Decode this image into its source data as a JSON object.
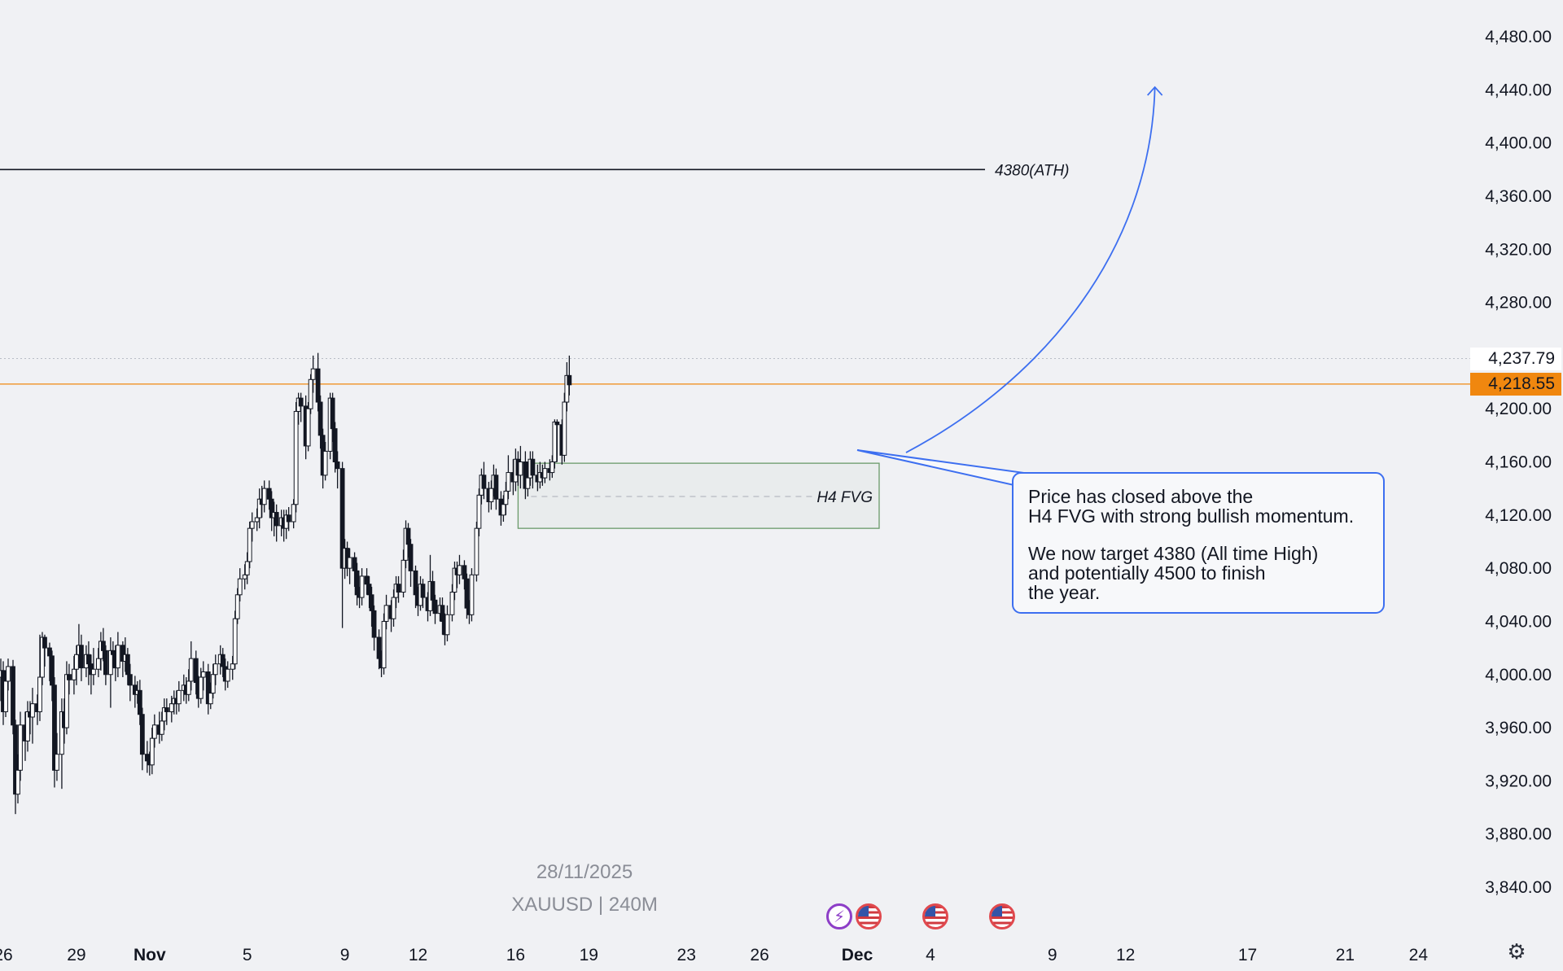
{
  "chart_data": {
    "type": "candlestick",
    "symbol_label": "XAUUSD | 240M",
    "date_label": "28/11/2025",
    "y_axis": {
      "range": [
        3820,
        4500
      ],
      "ticks": [
        "4,480.00",
        "4,440.00",
        "4,400.00",
        "4,360.00",
        "4,320.00",
        "4,280.00",
        "4,200.00",
        "4,160.00",
        "4,120.00",
        "4,080.00",
        "4,040.00",
        "4,000.00",
        "3,960.00",
        "3,920.00",
        "3,880.00",
        "3,840.00"
      ]
    },
    "x_axis": {
      "ticks": [
        {
          "label": "26",
          "day": 26
        },
        {
          "label": "29",
          "day": 29
        },
        {
          "label": "Nov",
          "day": 32,
          "bold": true
        },
        {
          "label": "5",
          "day": 36
        },
        {
          "label": "9",
          "day": 40
        },
        {
          "label": "12",
          "day": 43
        },
        {
          "label": "16",
          "day": 47
        },
        {
          "label": "19",
          "day": 50
        },
        {
          "label": "23",
          "day": 54
        },
        {
          "label": "26",
          "day": 57
        },
        {
          "label": "Dec",
          "day": 61,
          "bold": true
        },
        {
          "label": "4",
          "day": 64
        },
        {
          "label": "9",
          "day": 69
        },
        {
          "label": "12",
          "day": 72
        },
        {
          "label": "17",
          "day": 77
        },
        {
          "label": "21",
          "day": 81
        },
        {
          "label": "24",
          "day": 84
        }
      ]
    },
    "price_labels": {
      "high": {
        "value": 4237.79,
        "text": "4,237.79"
      },
      "last": {
        "value": 4218.55,
        "text": "4,218.55",
        "color": "#f0870f"
      }
    },
    "ath_line": {
      "value": 4380,
      "label": "4380(ATH)"
    },
    "fvg_zone": {
      "top": 4159,
      "bottom": 4110,
      "mid": 4134,
      "label": "H4 FVG",
      "day_start": 47.1,
      "day_end": 61.9
    },
    "projection_arrow": {
      "from": {
        "day": 63,
        "price": 4167
      },
      "to": {
        "day": 73.2,
        "price": 4442
      }
    },
    "candles": [
      [
        25.0,
        4118,
        4110,
        4075,
        4122
      ],
      [
        25.1,
        4075,
        4081,
        4060,
        4084
      ],
      [
        25.2,
        4081,
        4076,
        4052,
        4083
      ],
      [
        25.4,
        4076,
        4052,
        4040,
        4082
      ],
      [
        25.5,
        4052,
        4035,
        4026,
        4056
      ],
      [
        25.6,
        4035,
        4020,
        4010,
        4041
      ],
      [
        25.7,
        4020,
        3998,
        3990,
        4028
      ],
      [
        25.9,
        3998,
        4003,
        3980,
        4012
      ],
      [
        26.0,
        4003,
        3972,
        3962,
        4010
      ],
      [
        26.1,
        3972,
        3995,
        3968,
        4003
      ],
      [
        26.2,
        3995,
        4006,
        3988,
        4012
      ],
      [
        26.4,
        4006,
        3962,
        3955,
        4011
      ],
      [
        26.5,
        3962,
        3910,
        3895,
        3966
      ],
      [
        26.6,
        3910,
        3928,
        3903,
        3940
      ],
      [
        26.7,
        3928,
        3962,
        3920,
        3972
      ],
      [
        26.9,
        3962,
        3950,
        3935,
        3972
      ],
      [
        27.0,
        3950,
        3972,
        3942,
        3980
      ],
      [
        27.1,
        3972,
        3968,
        3955,
        3980
      ],
      [
        27.2,
        3968,
        3978,
        3948,
        3990
      ],
      [
        27.4,
        3978,
        3972,
        3962,
        3985
      ],
      [
        27.5,
        3972,
        3998,
        3965,
        4030
      ],
      [
        27.6,
        3998,
        4028,
        3992,
        4032
      ],
      [
        27.7,
        4028,
        4020,
        4006,
        4030
      ],
      [
        27.9,
        4020,
        4014,
        3995,
        4024
      ],
      [
        28.0,
        4014,
        3992,
        3980,
        4018
      ],
      [
        28.1,
        3992,
        3928,
        3915,
        3998
      ],
      [
        28.2,
        3928,
        3940,
        3920,
        3956
      ],
      [
        28.4,
        3940,
        3972,
        3914,
        3982
      ],
      [
        28.5,
        3972,
        3960,
        3948,
        3982
      ],
      [
        28.6,
        3960,
        4000,
        3955,
        4010
      ],
      [
        28.7,
        4000,
        3996,
        3985,
        4008
      ],
      [
        28.9,
        3996,
        4004,
        3985,
        4014
      ],
      [
        29.0,
        4004,
        4015,
        3992,
        4022
      ],
      [
        29.1,
        4015,
        4022,
        4005,
        4038
      ],
      [
        29.2,
        4022,
        4005,
        3995,
        4030
      ],
      [
        29.4,
        4005,
        4015,
        3998,
        4022
      ],
      [
        29.5,
        4015,
        4008,
        3992,
        4025
      ],
      [
        29.6,
        4008,
        4000,
        3985,
        4015
      ],
      [
        29.7,
        4000,
        4004,
        3992,
        4020
      ],
      [
        29.9,
        4004,
        4012,
        3998,
        4020
      ],
      [
        30.0,
        4012,
        4025,
        4003,
        4032
      ],
      [
        30.1,
        4025,
        4018,
        4010,
        4035
      ],
      [
        30.2,
        4018,
        4000,
        3992,
        4022
      ],
      [
        30.4,
        4000,
        4018,
        3975,
        4028
      ],
      [
        30.5,
        4018,
        4015,
        4005,
        4025
      ],
      [
        30.6,
        4015,
        4005,
        3995,
        4022
      ],
      [
        30.7,
        4005,
        4022,
        3998,
        4032
      ],
      [
        30.9,
        4022,
        4010,
        3998,
        4025
      ],
      [
        31.0,
        4010,
        4015,
        4002,
        4028
      ],
      [
        31.1,
        4015,
        4000,
        3992,
        4020
      ],
      [
        31.2,
        4000,
        3992,
        3980,
        4008
      ],
      [
        31.4,
        3992,
        3985,
        3975,
        3999
      ],
      [
        31.5,
        3985,
        3988,
        3978,
        3995
      ],
      [
        31.6,
        3988,
        3970,
        3962,
        3996
      ],
      [
        31.7,
        3970,
        3940,
        3928,
        3975
      ],
      [
        31.9,
        3940,
        3935,
        3926,
        3950
      ],
      [
        32.0,
        3935,
        3932,
        3924,
        3942
      ],
      [
        32.1,
        3932,
        3952,
        3925,
        3960
      ],
      [
        32.2,
        3952,
        3962,
        3945,
        3970
      ],
      [
        32.4,
        3962,
        3955,
        3948,
        3972
      ],
      [
        32.5,
        3955,
        3965,
        3950,
        3972
      ],
      [
        32.6,
        3965,
        3975,
        3958,
        3982
      ],
      [
        32.7,
        3975,
        3972,
        3962,
        3982
      ],
      [
        32.9,
        3972,
        3978,
        3964,
        3984
      ],
      [
        33.0,
        3978,
        3982,
        3970,
        3988
      ],
      [
        33.1,
        3982,
        3978,
        3970,
        3988
      ],
      [
        33.2,
        3978,
        3988,
        3972,
        3995
      ],
      [
        33.4,
        3988,
        3992,
        3980,
        4000
      ],
      [
        33.5,
        3992,
        3985,
        3978,
        3998
      ],
      [
        33.6,
        3985,
        3995,
        3980,
        4004
      ],
      [
        33.7,
        3995,
        4012,
        3988,
        4025
      ],
      [
        33.9,
        4012,
        3994,
        3985,
        4018
      ],
      [
        34.0,
        3994,
        3982,
        3975,
        3999
      ],
      [
        34.1,
        3982,
        3998,
        3978,
        4005
      ],
      [
        34.2,
        3998,
        4002,
        3988,
        4010
      ],
      [
        34.4,
        4002,
        3978,
        3970,
        4008
      ],
      [
        34.5,
        3978,
        3986,
        3974,
        3994
      ],
      [
        34.6,
        3986,
        4000,
        3982,
        4008
      ],
      [
        34.7,
        4000,
        4008,
        3992,
        4015
      ],
      [
        34.9,
        4008,
        4015,
        4000,
        4022
      ],
      [
        35.0,
        4015,
        4006,
        3998,
        4020
      ],
      [
        35.1,
        4006,
        3995,
        3988,
        4012
      ],
      [
        35.2,
        3995,
        4004,
        3990,
        4010
      ],
      [
        35.4,
        4004,
        4008,
        3996,
        4014
      ],
      [
        35.5,
        4008,
        4042,
        4004,
        4048
      ],
      [
        35.6,
        4042,
        4060,
        4038,
        4065
      ],
      [
        35.7,
        4060,
        4072,
        4055,
        4080
      ],
      [
        35.9,
        4072,
        4075,
        4064,
        4083
      ],
      [
        36.0,
        4075,
        4085,
        4068,
        4092
      ],
      [
        36.1,
        4085,
        4110,
        4080,
        4115
      ],
      [
        36.2,
        4110,
        4115,
        4100,
        4122
      ],
      [
        36.4,
        4115,
        4118,
        4108,
        4125
      ],
      [
        36.5,
        4118,
        4132,
        4110,
        4140
      ],
      [
        36.6,
        4132,
        4128,
        4118,
        4142
      ],
      [
        36.7,
        4128,
        4140,
        4122,
        4146
      ],
      [
        36.9,
        4140,
        4132,
        4124,
        4146
      ],
      [
        37.0,
        4132,
        4118,
        4108,
        4138
      ],
      [
        37.1,
        4118,
        4122,
        4104,
        4130
      ],
      [
        37.2,
        4122,
        4112,
        4100,
        4128
      ],
      [
        37.4,
        4112,
        4118,
        4104,
        4124
      ],
      [
        37.5,
        4118,
        4110,
        4100,
        4124
      ],
      [
        37.6,
        4110,
        4120,
        4102,
        4124
      ],
      [
        37.7,
        4120,
        4115,
        4108,
        4126
      ],
      [
        37.9,
        4115,
        4128,
        4110,
        4132
      ],
      [
        38.0,
        4128,
        4198,
        4122,
        4205
      ],
      [
        38.1,
        4198,
        4208,
        4188,
        4212
      ],
      [
        38.2,
        4208,
        4202,
        4190,
        4212
      ],
      [
        38.4,
        4202,
        4172,
        4162,
        4210
      ],
      [
        38.5,
        4172,
        4200,
        4168,
        4205
      ],
      [
        38.6,
        4200,
        4222,
        4196,
        4226
      ],
      [
        38.7,
        4222,
        4230,
        4212,
        4240
      ],
      [
        38.9,
        4230,
        4205,
        4198,
        4242
      ],
      [
        39.0,
        4205,
        4180,
        4170,
        4210
      ],
      [
        39.1,
        4180,
        4150,
        4140,
        4185
      ],
      [
        39.2,
        4150,
        4168,
        4146,
        4175
      ],
      [
        39.4,
        4168,
        4208,
        4162,
        4212
      ],
      [
        39.5,
        4208,
        4185,
        4175,
        4212
      ],
      [
        39.6,
        4185,
        4160,
        4152,
        4190
      ],
      [
        39.7,
        4160,
        4155,
        4140,
        4168
      ],
      [
        39.9,
        4155,
        4080,
        4035,
        4160
      ],
      [
        40.0,
        4080,
        4095,
        4072,
        4102
      ],
      [
        40.1,
        4095,
        4080,
        4074,
        4100
      ],
      [
        40.2,
        4080,
        4088,
        4068,
        4095
      ],
      [
        40.4,
        4088,
        4078,
        4066,
        4092
      ],
      [
        40.5,
        4078,
        4060,
        4052,
        4084
      ],
      [
        40.6,
        4060,
        4058,
        4050,
        4066
      ],
      [
        40.7,
        4058,
        4074,
        4052,
        4080
      ],
      [
        40.9,
        4074,
        4068,
        4060,
        4080
      ],
      [
        41.0,
        4068,
        4060,
        4050,
        4074
      ],
      [
        41.1,
        4060,
        4048,
        4036,
        4066
      ],
      [
        41.2,
        4048,
        4028,
        4018,
        4052
      ],
      [
        41.4,
        4028,
        4012,
        4004,
        4034
      ],
      [
        41.5,
        4012,
        4005,
        3998,
        4018
      ],
      [
        41.6,
        4005,
        4040,
        4000,
        4046
      ],
      [
        41.7,
        4040,
        4052,
        4034,
        4060
      ],
      [
        41.9,
        4052,
        4042,
        4032,
        4056
      ],
      [
        42.0,
        4042,
        4058,
        4036,
        4064
      ],
      [
        42.1,
        4058,
        4068,
        4050,
        4074
      ],
      [
        42.2,
        4068,
        4062,
        4054,
        4074
      ],
      [
        42.4,
        4062,
        4086,
        4058,
        4094
      ],
      [
        42.5,
        4086,
        4110,
        4080,
        4116
      ],
      [
        42.6,
        4110,
        4098,
        4088,
        4114
      ],
      [
        42.7,
        4098,
        4078,
        4066,
        4102
      ],
      [
        42.9,
        4078,
        4060,
        4050,
        4082
      ],
      [
        43.0,
        4060,
        4052,
        4044,
        4066
      ],
      [
        43.1,
        4052,
        4068,
        4048,
        4074
      ],
      [
        43.2,
        4068,
        4058,
        4050,
        4072
      ],
      [
        43.4,
        4058,
        4048,
        4040,
        4062
      ],
      [
        43.5,
        4048,
        4070,
        4044,
        4090
      ],
      [
        43.6,
        4070,
        4056,
        4048,
        4078
      ],
      [
        43.7,
        4056,
        4046,
        4038,
        4060
      ],
      [
        43.9,
        4046,
        4052,
        4040,
        4058
      ],
      [
        44.0,
        4052,
        4040,
        4030,
        4058
      ],
      [
        44.1,
        4040,
        4030,
        4022,
        4046
      ],
      [
        44.2,
        4030,
        4045,
        4025,
        4052
      ],
      [
        44.4,
        4045,
        4062,
        4040,
        4068
      ],
      [
        44.5,
        4062,
        4080,
        4056,
        4085
      ],
      [
        44.6,
        4080,
        4075,
        4065,
        4085
      ],
      [
        44.7,
        4075,
        4082,
        4068,
        4090
      ],
      [
        44.9,
        4082,
        4072,
        4064,
        4086
      ],
      [
        45.0,
        4072,
        4050,
        4042,
        4076
      ],
      [
        45.1,
        4050,
        4045,
        4038,
        4056
      ],
      [
        45.2,
        4045,
        4075,
        4040,
        4080
      ],
      [
        45.4,
        4075,
        4110,
        4070,
        4115
      ],
      [
        45.5,
        4110,
        4135,
        4104,
        4140
      ],
      [
        45.6,
        4135,
        4150,
        4128,
        4155
      ],
      [
        45.7,
        4150,
        4140,
        4132,
        4160
      ],
      [
        45.9,
        4140,
        4130,
        4122,
        4145
      ],
      [
        46.0,
        4130,
        4140,
        4124,
        4146
      ],
      [
        46.1,
        4140,
        4150,
        4134,
        4158
      ],
      [
        46.2,
        4150,
        4132,
        4124,
        4155
      ],
      [
        46.4,
        4132,
        4120,
        4112,
        4138
      ],
      [
        46.5,
        4120,
        4128,
        4115,
        4135
      ],
      [
        46.6,
        4128,
        4138,
        4120,
        4145
      ],
      [
        46.7,
        4138,
        4152,
        4132,
        4165
      ],
      [
        46.9,
        4152,
        4145,
        4135,
        4162
      ],
      [
        47.0,
        4145,
        4162,
        4138,
        4170
      ],
      [
        47.1,
        4162,
        4150,
        4142,
        4168
      ],
      [
        47.2,
        4150,
        4160,
        4140,
        4172
      ],
      [
        47.4,
        4160,
        4140,
        4132,
        4168
      ],
      [
        47.5,
        4140,
        4148,
        4134,
        4160
      ],
      [
        47.6,
        4148,
        4162,
        4142,
        4168
      ],
      [
        47.7,
        4162,
        4150,
        4140,
        4168
      ],
      [
        47.9,
        4150,
        4145,
        4138,
        4158
      ],
      [
        48.0,
        4145,
        4152,
        4140,
        4160
      ],
      [
        48.1,
        4152,
        4148,
        4142,
        4158
      ],
      [
        48.2,
        4148,
        4155,
        4144,
        4160
      ],
      [
        48.4,
        4155,
        4152,
        4146,
        4162
      ],
      [
        48.5,
        4152,
        4160,
        4148,
        4165
      ],
      [
        48.6,
        4160,
        4190,
        4155,
        4192
      ],
      [
        48.7,
        4190,
        4188,
        4160,
        4192
      ],
      [
        48.9,
        4188,
        4165,
        4158,
        4192
      ],
      [
        49.0,
        4165,
        4205,
        4160,
        4212
      ],
      [
        49.1,
        4205,
        4225,
        4198,
        4235
      ],
      [
        49.2,
        4225,
        4218,
        4210,
        4240
      ]
    ]
  }
}
